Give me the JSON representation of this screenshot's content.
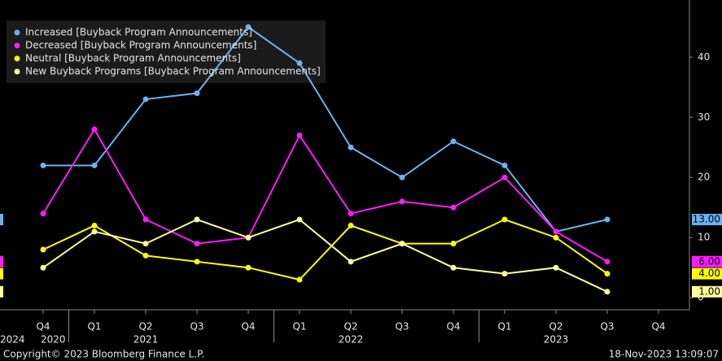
{
  "chart_data": {
    "type": "line",
    "categories": [
      "Q4",
      "Q1",
      "Q2",
      "Q3",
      "Q4",
      "Q1",
      "Q2",
      "Q3",
      "Q4",
      "Q1",
      "Q2",
      "Q3",
      "Q4"
    ],
    "years": [
      "2020",
      "2021",
      "2022",
      "2023",
      "2024"
    ],
    "series": [
      {
        "name": "Increased [Buyback Program Announcements]",
        "color": "#6cb2f2",
        "values": [
          22,
          22,
          33,
          34,
          45,
          39,
          25,
          20,
          26,
          22,
          11,
          13,
          null
        ],
        "last_label": "13.00"
      },
      {
        "name": "Decreased [Buyback Program Announcements]",
        "color": "#ff1aff",
        "values": [
          14,
          28,
          13,
          9,
          10,
          27,
          14,
          16,
          15,
          20,
          11,
          6,
          null
        ],
        "last_label": "6.00"
      },
      {
        "name": "Neutral [Buyback Program Announcements]",
        "color": "#ffff00",
        "values": [
          8,
          12,
          7,
          6,
          5,
          3,
          12,
          9,
          9,
          13,
          10,
          4,
          null
        ],
        "last_label": "4.00"
      },
      {
        "name": "New Buyback Programs [Buyback Program Announcements]",
        "color": "#ffff99",
        "values": [
          5,
          11,
          9,
          13,
          10,
          13,
          6,
          9,
          5,
          4,
          5,
          1,
          null
        ],
        "last_label": "1.00"
      }
    ],
    "ylim": [
      -2,
      49.5
    ],
    "yticks": [
      0,
      10,
      20,
      30,
      40
    ],
    "legend": "top-left",
    "footer": {
      "copyright": "Copyright© 2023 Bloomberg Finance L.P.",
      "timestamp": "18-Nov-2023 13:09:07"
    }
  }
}
